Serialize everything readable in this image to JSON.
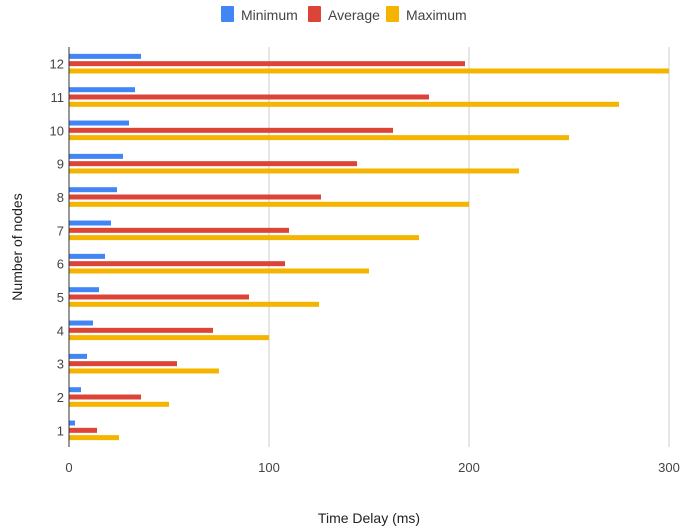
{
  "chart_data": {
    "type": "bar",
    "orientation": "horizontal",
    "categories": [
      "1",
      "2",
      "3",
      "4",
      "5",
      "6",
      "7",
      "8",
      "9",
      "10",
      "11",
      "12"
    ],
    "series": [
      {
        "name": "Minimum",
        "color": "#4285F4",
        "values": [
          3,
          6,
          9,
          12,
          15,
          18,
          21,
          24,
          27,
          30,
          33,
          36
        ]
      },
      {
        "name": "Average",
        "color": "#DB4437",
        "values": [
          14,
          36,
          54,
          72,
          90,
          108,
          110,
          126,
          144,
          162,
          180,
          198
        ]
      },
      {
        "name": "Maximum",
        "color": "#F4B400",
        "values": [
          25,
          50,
          75,
          100,
          125,
          150,
          175,
          200,
          225,
          250,
          275,
          300
        ]
      }
    ],
    "xlabel": "Time Delay (ms)",
    "ylabel": "Number of nodes",
    "xlim": [
      0,
      300
    ],
    "xticks": [
      0,
      100,
      200,
      300
    ],
    "grid": "vertical",
    "legend_position": "top-center"
  }
}
